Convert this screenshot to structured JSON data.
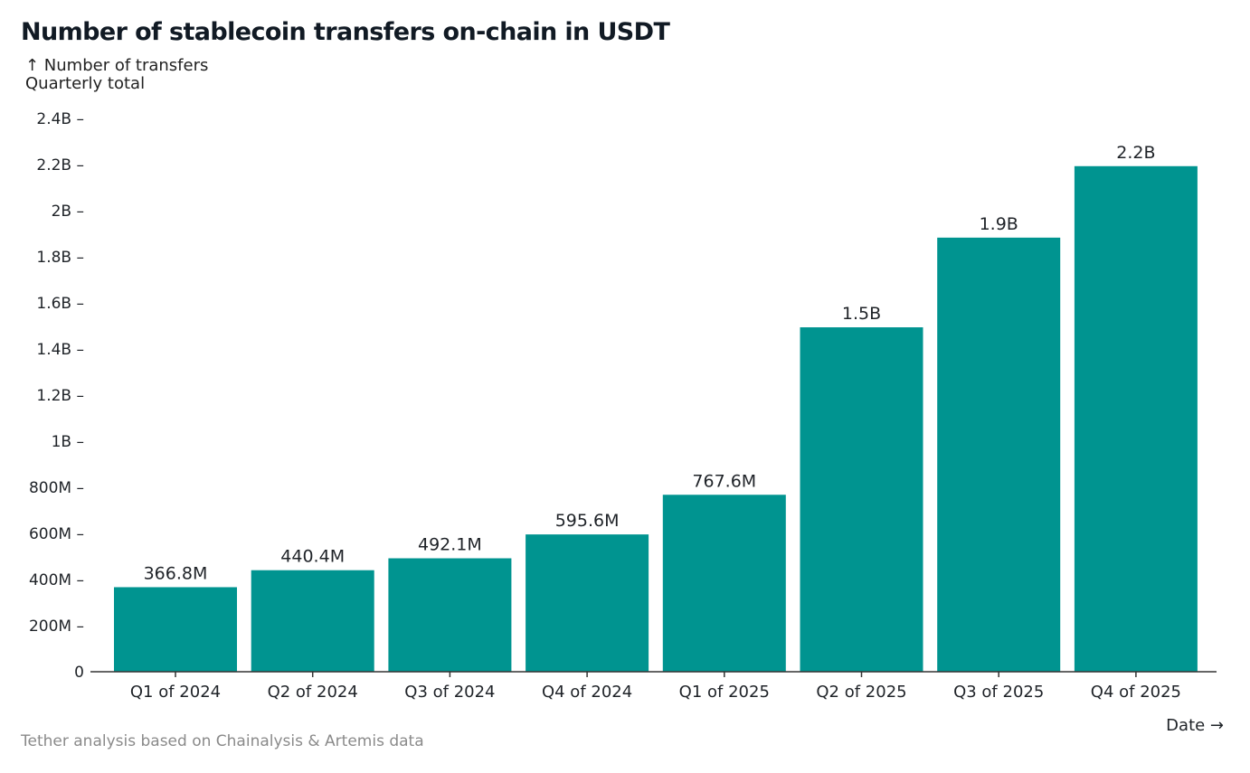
{
  "chart_data": {
    "type": "bar",
    "title": "Number of stablecoin transfers on-chain in USDT",
    "ylabel": "↑ Number of transfers",
    "ysublabel": "Quarterly total",
    "xlabel": "Date →",
    "source": "Tether analysis based on Chainalysis & Artemis data",
    "categories": [
      "Q1 of 2024",
      "Q2 of 2024",
      "Q3 of 2024",
      "Q4 of 2024",
      "Q1 of 2025",
      "Q2 of 2025",
      "Q3 of 2025",
      "Q4 of 2025"
    ],
    "values": [
      366800000,
      440400000,
      492100000,
      595600000,
      767600000,
      1494000000,
      1883000000,
      2193000000
    ],
    "data_labels": [
      "366.8M",
      "440.4M",
      "492.1M",
      "595.6M",
      "767.6M",
      "1.5B",
      "1.9B",
      "2.2B"
    ],
    "ylim": [
      0,
      2400000000
    ],
    "yticks": [
      0,
      200000000,
      400000000,
      600000000,
      800000000,
      1000000000,
      1200000000,
      1400000000,
      1600000000,
      1800000000,
      2000000000,
      2200000000,
      2400000000
    ],
    "ytick_labels": [
      "0",
      "200M",
      "400M",
      "600M",
      "800M",
      "1B",
      "1.2B",
      "1.4B",
      "1.6B",
      "1.8B",
      "2B",
      "2.2B",
      "2.4B"
    ],
    "grid": false,
    "colors": {
      "bar": "#009490",
      "text": "#1f2328",
      "source": "#8a8a8a"
    }
  }
}
